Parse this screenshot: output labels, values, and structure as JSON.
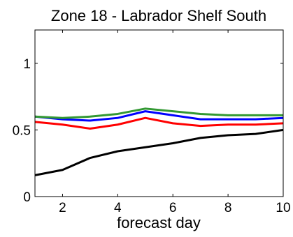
{
  "chart_data": {
    "type": "line",
    "title": "Zone 18 - Labrador Shelf South",
    "xlabel": "forecast day",
    "ylabel": "",
    "xlim": [
      1,
      10
    ],
    "ylim": [
      0,
      1.25
    ],
    "x_ticks": [
      2,
      4,
      6,
      8,
      10
    ],
    "y_ticks": [
      0,
      0.5,
      1
    ],
    "x_tick_labels": [
      "2",
      "4",
      "6",
      "8",
      "10"
    ],
    "y_tick_labels": [
      "0",
      "0.5",
      "1"
    ],
    "grid": false,
    "legend": "none",
    "x": [
      1,
      2,
      3,
      4,
      5,
      6,
      7,
      8,
      9,
      10
    ],
    "series": [
      {
        "color": "#000000",
        "values": [
          0.16,
          0.2,
          0.29,
          0.34,
          0.37,
          0.4,
          0.44,
          0.46,
          0.47,
          0.5
        ]
      },
      {
        "color": "#ff0000",
        "values": [
          0.56,
          0.54,
          0.51,
          0.54,
          0.59,
          0.55,
          0.53,
          0.54,
          0.54,
          0.55
        ]
      },
      {
        "color": "#0000ff",
        "values": [
          0.6,
          0.58,
          0.57,
          0.59,
          0.64,
          0.61,
          0.58,
          0.58,
          0.58,
          0.59
        ]
      },
      {
        "color": "#339933",
        "values": [
          0.6,
          0.59,
          0.6,
          0.62,
          0.66,
          0.64,
          0.62,
          0.61,
          0.61,
          0.61
        ]
      }
    ]
  }
}
